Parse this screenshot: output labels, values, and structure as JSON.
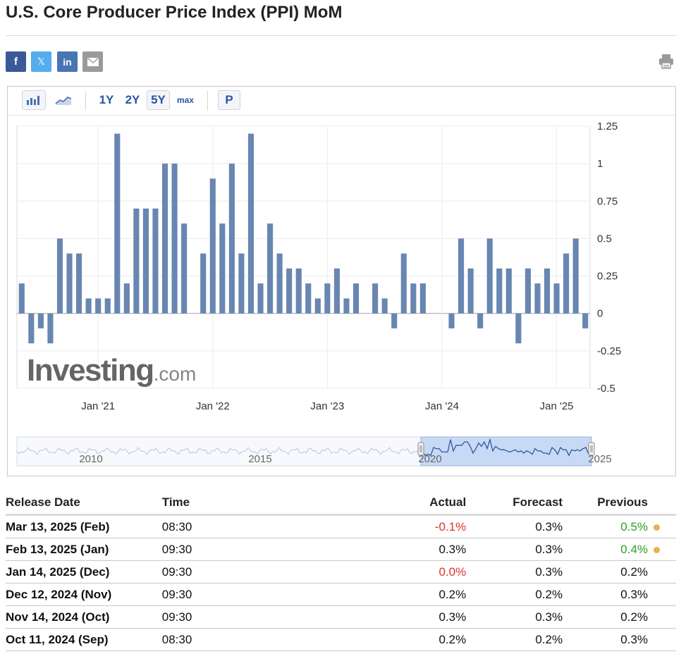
{
  "page": {
    "title": "U.S. Core Producer Price Index (PPI) MoM"
  },
  "share": {
    "facebook_icon": "facebook-icon",
    "twitter_icon": "twitter-x-icon",
    "linkedin_icon": "linkedin-icon",
    "email_icon": "email-icon",
    "print_icon": "printer-icon",
    "facebook_glyph": "f",
    "twitter_glyph": "𝕏",
    "linkedin_glyph": "in"
  },
  "toolbar": {
    "bar_chart_icon": "bar-chart-icon",
    "line_chart_icon": "line-chart-icon",
    "range_1y": "1Y",
    "range_2y": "2Y",
    "range_5y": "5Y",
    "range_max": "max",
    "selected_range": "5Y",
    "p_label": "P"
  },
  "watermark": {
    "brand": "Investing",
    "suffix": ".com"
  },
  "chart_data": {
    "type": "bar",
    "yticks": [
      "1.25",
      "1",
      "0.75",
      "0.5",
      "0.25",
      "0",
      "-0.25",
      "-0.5"
    ],
    "ylim": [
      -0.5,
      1.25
    ],
    "xticks": [
      "Jan '21",
      "Jan '22",
      "Jan '23",
      "Jan '24",
      "Jan '25"
    ],
    "grid": true,
    "bar_color": "#6886b1",
    "values": [
      0.2,
      -0.2,
      -0.1,
      -0.2,
      0.5,
      0.4,
      0.4,
      0.1,
      0.1,
      0.1,
      1.2,
      0.2,
      0.7,
      0.7,
      0.7,
      1.0,
      1.0,
      0.6,
      0.0,
      0.4,
      0.9,
      0.6,
      1.0,
      0.4,
      1.2,
      0.2,
      0.6,
      0.4,
      0.3,
      0.3,
      0.2,
      0.1,
      0.2,
      0.3,
      0.1,
      0.2,
      0.0,
      0.2,
      0.1,
      -0.1,
      0.4,
      0.2,
      0.2,
      0.0,
      0.0,
      -0.1,
      0.5,
      0.3,
      -0.1,
      0.5,
      0.3,
      0.3,
      -0.2,
      0.3,
      0.2,
      0.3,
      0.2,
      0.4,
      0.5,
      -0.1
    ],
    "navigator": {
      "labels": [
        "2010",
        "2015",
        "2020",
        "2025"
      ]
    }
  },
  "table": {
    "headers": {
      "release_date": "Release Date",
      "time": "Time",
      "actual": "Actual",
      "forecast": "Forecast",
      "previous": "Previous"
    },
    "dot_color": "#e6b24a",
    "rows": [
      {
        "date": "Mar 13, 2025 (Feb)",
        "time": "08:30",
        "actual": "-0.1%",
        "actual_status": "neg",
        "forecast": "0.3%",
        "previous": "0.5%",
        "previous_status": "pos",
        "revised": true
      },
      {
        "date": "Feb 13, 2025 (Jan)",
        "time": "09:30",
        "actual": "0.3%",
        "actual_status": "",
        "forecast": "0.3%",
        "previous": "0.4%",
        "previous_status": "pos",
        "revised": true
      },
      {
        "date": "Jan 14, 2025 (Dec)",
        "time": "09:30",
        "actual": "0.0%",
        "actual_status": "neg",
        "forecast": "0.3%",
        "previous": "0.2%",
        "previous_status": "",
        "revised": false
      },
      {
        "date": "Dec 12, 2024 (Nov)",
        "time": "09:30",
        "actual": "0.2%",
        "actual_status": "",
        "forecast": "0.2%",
        "previous": "0.3%",
        "previous_status": "",
        "revised": false
      },
      {
        "date": "Nov 14, 2024 (Oct)",
        "time": "09:30",
        "actual": "0.3%",
        "actual_status": "",
        "forecast": "0.3%",
        "previous": "0.2%",
        "previous_status": "",
        "revised": false
      },
      {
        "date": "Oct 11, 2024 (Sep)",
        "time": "08:30",
        "actual": "0.2%",
        "actual_status": "",
        "forecast": "0.2%",
        "previous": "0.3%",
        "previous_status": "",
        "revised": false
      }
    ]
  }
}
